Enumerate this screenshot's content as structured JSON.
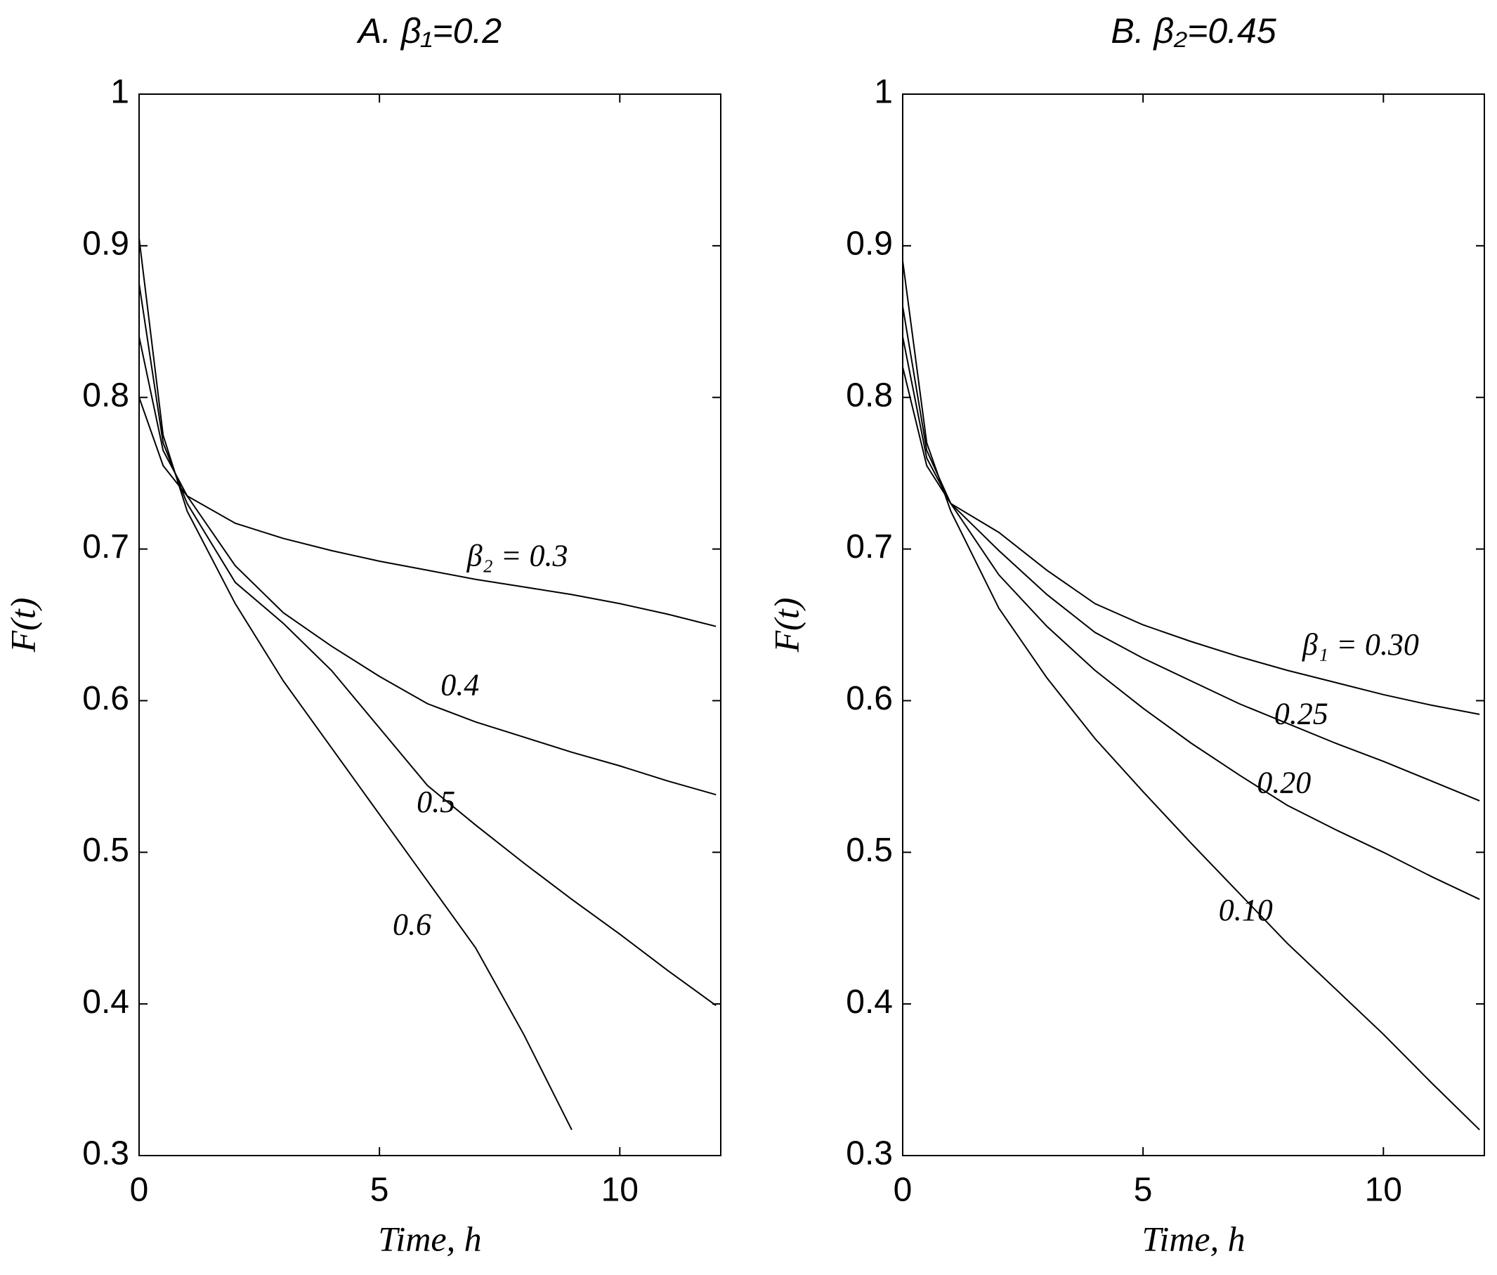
{
  "chart_data": [
    {
      "type": "line",
      "title": "A. β₁=0.2",
      "xlabel": "Time, h",
      "ylabel": "F(t)",
      "x": [
        0,
        0.5,
        1,
        2,
        3,
        4,
        5,
        6,
        7,
        8,
        9,
        10,
        11,
        12
      ],
      "xlim": [
        0,
        12.1
      ],
      "xticks": [
        0,
        5,
        10
      ],
      "ylim": [
        0.3,
        1
      ],
      "yticks": [
        0.3,
        0.4,
        0.5,
        0.6,
        0.7,
        0.8,
        0.9,
        1
      ],
      "series": [
        {
          "name": "β₂ = 0.3",
          "color": "#000000",
          "values": [
            0.8,
            0.755,
            0.735,
            0.717,
            0.707,
            0.699,
            0.692,
            0.686,
            0.68,
            0.675,
            0.67,
            0.664,
            0.657,
            0.649
          ]
        },
        {
          "name": "0.4",
          "color": "#000000",
          "values": [
            0.84,
            0.765,
            0.735,
            0.689,
            0.658,
            0.636,
            0.616,
            0.598,
            0.586,
            0.576,
            0.566,
            0.557,
            0.547,
            0.538
          ]
        },
        {
          "name": "0.5",
          "color": "#000000",
          "values": [
            0.875,
            0.77,
            0.73,
            0.678,
            0.651,
            0.62,
            0.582,
            0.544,
            0.518,
            0.493,
            0.469,
            0.446,
            0.422,
            0.399
          ]
        },
        {
          "name": "0.6",
          "color": "#000000",
          "values": [
            0.905,
            0.775,
            0.725,
            0.664,
            0.613,
            0.569,
            0.525,
            0.481,
            0.437,
            0.38,
            0.317,
            null,
            null,
            null
          ]
        }
      ]
    },
    {
      "type": "line",
      "title": "B. β₂=0.45",
      "xlabel": "Time, h",
      "ylabel": "F(t)",
      "x": [
        0,
        0.5,
        1,
        2,
        3,
        4,
        5,
        6,
        7,
        8,
        9,
        10,
        11,
        12
      ],
      "xlim": [
        0,
        12.1
      ],
      "xticks": [
        0,
        5,
        10
      ],
      "ylim": [
        0.3,
        1
      ],
      "yticks": [
        0.3,
        0.4,
        0.5,
        0.6,
        0.7,
        0.8,
        0.9,
        1
      ],
      "series": [
        {
          "name": "β₁ = 0.30",
          "color": "#000000",
          "values": [
            0.82,
            0.755,
            0.73,
            0.711,
            0.686,
            0.664,
            0.65,
            0.639,
            0.629,
            0.62,
            0.612,
            0.604,
            0.597,
            0.591
          ]
        },
        {
          "name": "0.25",
          "color": "#000000",
          "values": [
            0.84,
            0.76,
            0.73,
            0.699,
            0.67,
            0.645,
            0.628,
            0.613,
            0.598,
            0.585,
            0.572,
            0.56,
            0.547,
            0.534
          ]
        },
        {
          "name": "0.20",
          "color": "#000000",
          "values": [
            0.86,
            0.765,
            0.73,
            0.683,
            0.649,
            0.62,
            0.595,
            0.572,
            0.551,
            0.531,
            0.515,
            0.5,
            0.484,
            0.469
          ]
        },
        {
          "name": "0.10",
          "color": "#000000",
          "values": [
            0.89,
            0.77,
            0.725,
            0.661,
            0.615,
            0.575,
            0.54,
            0.506,
            0.473,
            0.44,
            0.41,
            0.38,
            0.348,
            0.317
          ]
        }
      ]
    }
  ]
}
